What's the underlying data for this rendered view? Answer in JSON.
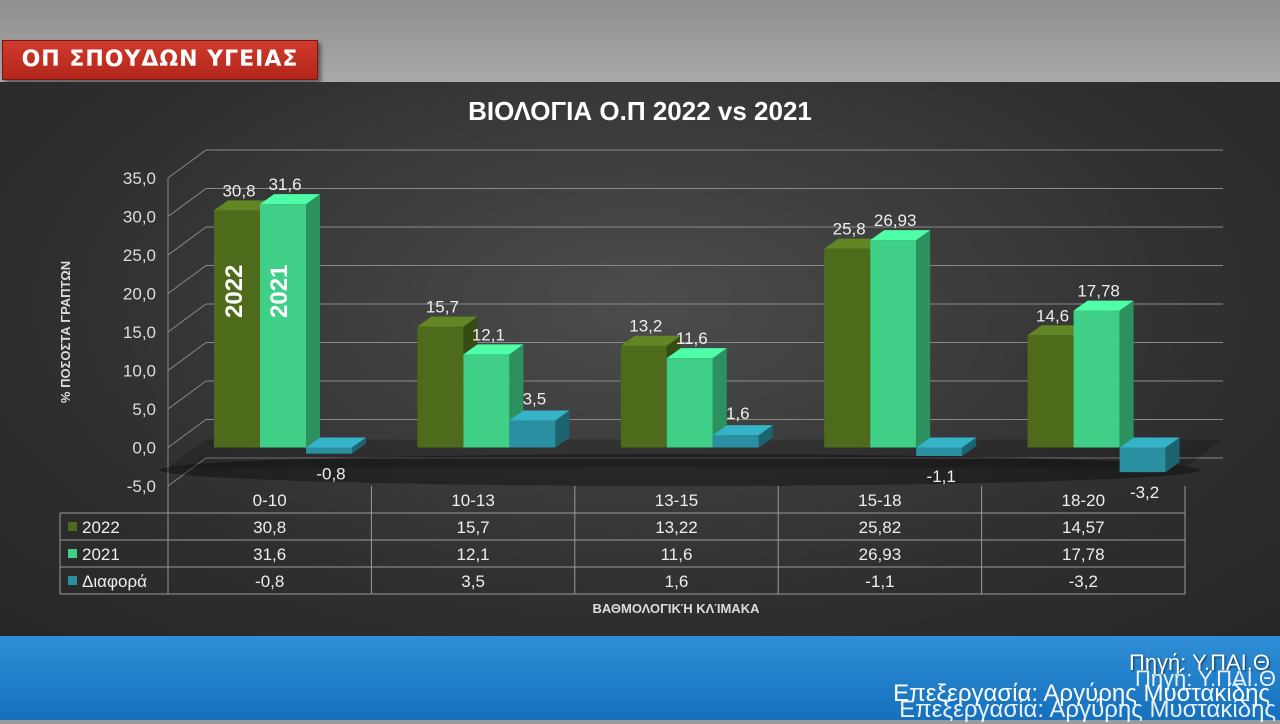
{
  "slide": {
    "badge": "ΟΠ ΣΠΟΥΔΩΝ ΥΓΕΙΑΣ",
    "source": "Πηγή: Υ.ΠΑΙ.Θ",
    "processing": "Επεξεργασία: Αργύρης Μυστακίδης"
  },
  "colors": {
    "s2022": "#4e6b1c",
    "s2021": "#3fcf86",
    "diff": "#2a8fa0"
  },
  "chart_data": {
    "type": "bar",
    "title": "ΒΙΟΛΟΓΙΑ  Ο.Π 2022 vs 2021",
    "xlabel": "ΒΑΘΜΟΛΟΓΙΚΉ ΚΛΊΜΑΚΑ",
    "ylabel": "% ΠΟΣΟΣΤΑ ΓΡΑΠΤΩΝ",
    "ylim": [
      -5,
      35
    ],
    "yticks": [
      "35,0",
      "30,0",
      "25,0",
      "20,0",
      "15,0",
      "10,0",
      "5,0",
      "0,0",
      "-5,0"
    ],
    "categories": [
      "0-10",
      "10-13",
      "13-15",
      "15-18",
      "18-20"
    ],
    "series": [
      {
        "name": "2022",
        "values": [
          30.8,
          15.7,
          13.22,
          25.82,
          14.57
        ],
        "labels": [
          "30,8",
          "15,7",
          "13,2",
          "25,8",
          "14,6"
        ],
        "table": [
          "30,8",
          "15,7",
          "13,22",
          "25,82",
          "14,57"
        ]
      },
      {
        "name": "2021",
        "values": [
          31.6,
          12.1,
          11.6,
          26.93,
          17.78
        ],
        "labels": [
          "31,6",
          "12,1",
          "11,6",
          "26,93",
          "17,78"
        ],
        "table": [
          "31,6",
          "12,1",
          "11,6",
          "26,93",
          "17,78"
        ]
      },
      {
        "name": "Διαφορά",
        "values": [
          -0.8,
          3.5,
          1.6,
          -1.1,
          -3.2
        ],
        "labels": [
          "-0,8",
          "3,5",
          "1,6",
          "-1,1",
          "-3,2"
        ],
        "table": [
          "-0,8",
          "3,5",
          "1,6",
          "-1,1",
          "-3,2"
        ]
      }
    ],
    "annotations": [
      "2022",
      "2021"
    ]
  }
}
